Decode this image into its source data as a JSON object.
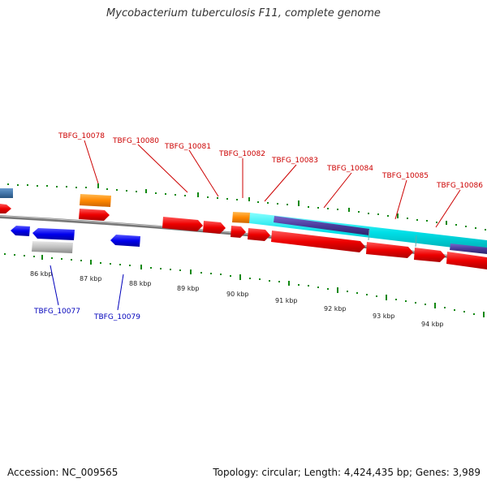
{
  "title": "Mycobacterium tuberculosis F11, complete genome",
  "footer": {
    "accession": "Accession: NC_009565",
    "info": "Topology: circular; Length: 4,424,435 bp; Genes: 3,989"
  },
  "colors": {
    "forward_cds": "#ee0000",
    "reverse_cds": "#0000ee",
    "backbone": "#888888",
    "tick": "#118811",
    "top_label": "#cc0000",
    "bottom_label": "#0000bb",
    "orange_feature": "#ff8800",
    "cyan_feature": "#00e0e8",
    "purple_feature": "#5544aa",
    "grey_feature": "#c0c0c0",
    "steelblue_feature": "#4477aa"
  },
  "kbp_labels": [
    "86 kbp",
    "87 kbp",
    "88 kbp",
    "89 kbp",
    "90 kbp",
    "91 kbp",
    "92 kbp",
    "93 kbp",
    "94 kbp"
  ],
  "top_labels": [
    "TBFG_10078",
    "TBFG_10080",
    "TBFG_10081",
    "TBFG_10082",
    "TBFG_10083",
    "TBFG_10084",
    "TBFG_10085",
    "TBFG_10086"
  ],
  "bottom_labels": [
    "TBFG_10077",
    "TBFG_10079"
  ]
}
